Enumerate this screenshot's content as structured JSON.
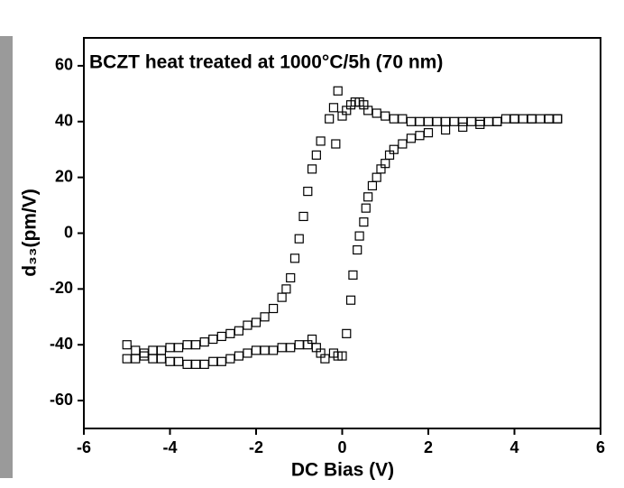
{
  "chart_data": {
    "type": "scatter",
    "title": "BCZT heat treated at 1000°C/5h  (70 nm)",
    "xlabel": "DC Bias (V)",
    "ylabel": "d₃₃(pm/V)",
    "xlim": [
      -6,
      6
    ],
    "ylim": [
      -70,
      70
    ],
    "xticks": [
      -6,
      -4,
      -2,
      0,
      2,
      4,
      6
    ],
    "yticks": [
      -60,
      -40,
      -20,
      0,
      20,
      40,
      60
    ],
    "marker": "open-square",
    "series": [
      {
        "color": "#000000",
        "x": [
          5,
          4.8,
          4.6,
          4.4,
          4.2,
          4,
          3.8,
          3.6,
          3.4,
          3.2,
          3,
          2.8,
          2.6,
          2.4,
          2.2,
          2,
          1.8,
          1.6,
          1.4,
          1.2,
          1,
          0.8,
          0.6,
          0.5,
          0.4,
          0.3,
          0.2,
          0.1,
          0,
          -0.1,
          -0.2,
          -0.3,
          -0.15,
          -0.5,
          -0.6,
          -0.7,
          -0.8,
          -0.9,
          -1,
          -1.1,
          -1.2,
          -1.3,
          -1.4,
          -1.6,
          -1.8,
          -2,
          -2.2,
          -2.4,
          -2.6,
          -2.8,
          -3,
          -3.2,
          -3.4,
          -3.6,
          -3.8,
          -4,
          -4.2,
          -4.4,
          -4.6,
          -4.8,
          -5
        ],
        "values": [
          41,
          41,
          41,
          41,
          41,
          41,
          41,
          40,
          40,
          40,
          40,
          40,
          40,
          40,
          40,
          40,
          40,
          40,
          41,
          41,
          42,
          43,
          44,
          46,
          47,
          47,
          46,
          44,
          42,
          51,
          45,
          41,
          32,
          33,
          28,
          23,
          15,
          6,
          -2,
          -9,
          -16,
          -20,
          -23,
          -27,
          -30,
          -32,
          -33,
          -35,
          -36,
          -37,
          -38,
          -39,
          -40,
          -40,
          -41,
          -41,
          -42,
          -42,
          -43,
          -42,
          -40
        ]
      },
      {
        "color": "#000000",
        "x": [
          -5,
          -4.8,
          -4.6,
          -4.4,
          -4.2,
          -4,
          -3.8,
          -3.6,
          -3.4,
          -3.2,
          -3,
          -2.8,
          -2.6,
          -2.4,
          -2.2,
          -2,
          -1.8,
          -1.6,
          -1.4,
          -1.2,
          -1,
          -0.8,
          -0.7,
          -0.6,
          -0.5,
          -0.4,
          -0.2,
          -0.1,
          0,
          0.1,
          0.2,
          0.25,
          0.35,
          0.4,
          0.5,
          0.55,
          0.6,
          0.7,
          0.8,
          0.9,
          1,
          1.1,
          1.2,
          1.4,
          1.6,
          1.8,
          2,
          2.4,
          2.8,
          3.2,
          3.6,
          4,
          4.4,
          4.8,
          5
        ],
        "values": [
          -45,
          -45,
          -44,
          -45,
          -45,
          -46,
          -46,
          -47,
          -47,
          -47,
          -46,
          -46,
          -45,
          -44,
          -43,
          -42,
          -42,
          -42,
          -41,
          -41,
          -40,
          -40,
          -38,
          -41,
          -43,
          -45,
          -43,
          -44,
          -44,
          -36,
          -24,
          -15,
          -6,
          -1,
          4,
          9,
          13,
          17,
          20,
          23,
          25,
          28,
          30,
          32,
          34,
          35,
          36,
          37,
          38,
          39,
          40,
          41,
          41,
          41,
          41
        ]
      }
    ]
  }
}
